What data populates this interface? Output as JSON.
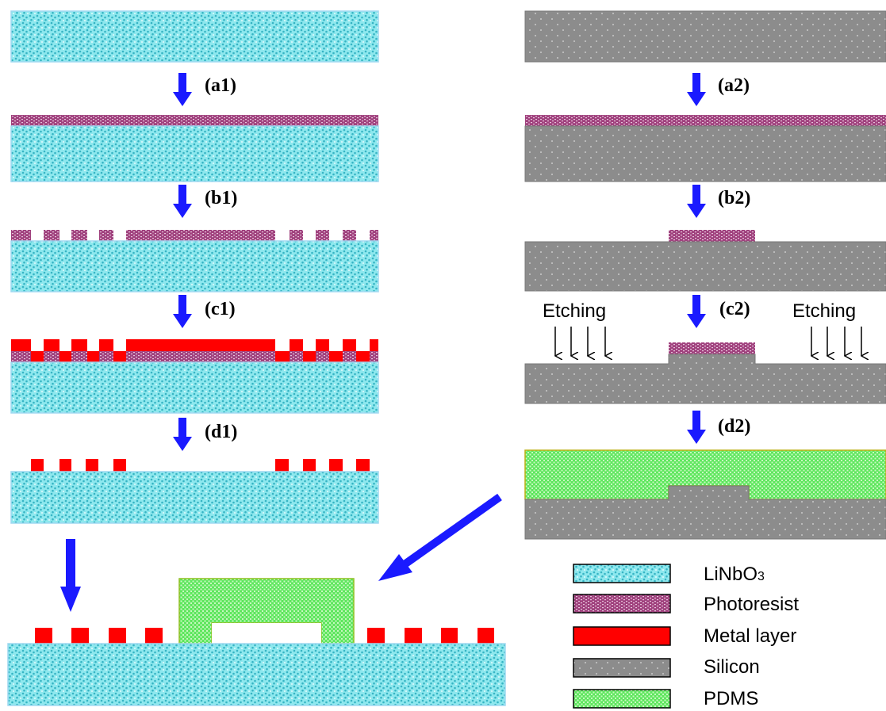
{
  "steps": {
    "a1": "(a1)",
    "b1": "(b1)",
    "c1": "(c1)",
    "d1": "(d1)",
    "a2": "(a2)",
    "b2": "(b2)",
    "c2": "(c2)",
    "d2": "(d2)"
  },
  "etching": {
    "left": "Etching",
    "right": "Etching"
  },
  "legend": {
    "linbo3": {
      "label": "LiNbO",
      "sub": "3"
    },
    "photoresist": "Photoresist",
    "metal": "Metal layer",
    "silicon": "Silicon",
    "pdms": "PDMS"
  },
  "colors": {
    "linbo3_base": "#8ee8ee",
    "linbo3_dot": "#37b4c4",
    "photoresist_base": "#a0427e",
    "photoresist_dot": "#e6c2da",
    "metal": "#ff0000",
    "silicon": "#8c8c8c",
    "silicon_dot": "#dcdcdc",
    "pdms_base": "#5ee65e",
    "pdms_dot": "#c8f8c0",
    "arrow_blue": "#1a1aff"
  }
}
